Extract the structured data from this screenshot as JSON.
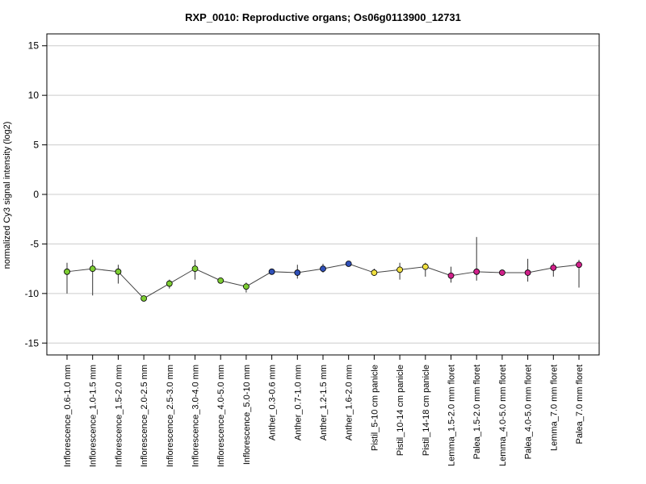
{
  "chart_data": {
    "type": "line",
    "title": "RXP_0010: Reproductive organs; Os06g0113900_12731",
    "xlabel": "",
    "ylabel": "normalized Cy3 signal intensity (log2)",
    "ylim": [
      -16.2,
      16.2
    ],
    "yticks": [
      -15,
      -10,
      -5,
      0,
      5,
      10,
      15
    ],
    "grid": true,
    "categories": [
      "Inflorescence_0.6-1.0 mm",
      "Inflorescence_1.0-1.5 mm",
      "Inflorescence_1.5-2.0 mm",
      "Inflorescence_2.0-2.5 mm",
      "Inflorescence_2.5-3.0 mm",
      "Inflorescence_3.0-4.0 mm",
      "Inflorescence_4.0-5.0 mm",
      "Inflorescence_5.0-10 mm",
      "Anther_0.3-0.6 mm",
      "Anther_0.7-1.0 mm",
      "Anther_1.2-1.5 mm",
      "Anther_1.6-2.0 mm",
      "Pistil_5-10 cm panicle",
      "Pistil_10-14 cm panicle",
      "Pistil_14-18 cm panicle",
      "Lemma_1.5-2.0 mm floret",
      "Palea_1.5-2.0 mm floret",
      "Lemma_4.0-5.0 mm floret",
      "Palea_4.0-5.0 mm floret",
      "Lemma_7.0 mm floret",
      "Palea_7.0 mm floret"
    ],
    "values": [
      -7.8,
      -7.5,
      -7.8,
      -10.5,
      -9.0,
      -7.5,
      -8.7,
      -9.3,
      -7.8,
      -7.9,
      -7.5,
      -7.0,
      -7.9,
      -7.6,
      -7.3,
      -8.2,
      -7.8,
      -7.9,
      -7.9,
      -7.4,
      -7.1
    ],
    "error_low": [
      -10.0,
      -10.2,
      -9.0,
      -10.6,
      -9.5,
      -8.6,
      -8.8,
      -9.9,
      -7.9,
      -8.5,
      -7.9,
      -7.1,
      -8.1,
      -8.6,
      -8.3,
      -8.9,
      -8.7,
      -8.2,
      -8.8,
      -8.3,
      -9.4
    ],
    "error_high": [
      -6.9,
      -6.6,
      -7.1,
      -10.3,
      -8.6,
      -6.6,
      -8.6,
      -8.9,
      -7.6,
      -7.1,
      -7.0,
      -6.9,
      -7.5,
      -6.9,
      -6.9,
      -7.3,
      -4.3,
      -7.7,
      -6.5,
      -6.9,
      -6.6
    ],
    "point_colors": [
      "#7CCD32",
      "#7CCD32",
      "#7CCD32",
      "#7CCD32",
      "#7CCD32",
      "#7CCD32",
      "#7CCD32",
      "#7CCD32",
      "#3050B8",
      "#3050B8",
      "#3050B8",
      "#3050B8",
      "#F0E040",
      "#F0E040",
      "#F0E040",
      "#D0208A",
      "#D0208A",
      "#D0208A",
      "#D0208A",
      "#D0208A",
      "#D0208A"
    ],
    "line_color": "#444444",
    "grid_color": "#cccccc"
  }
}
